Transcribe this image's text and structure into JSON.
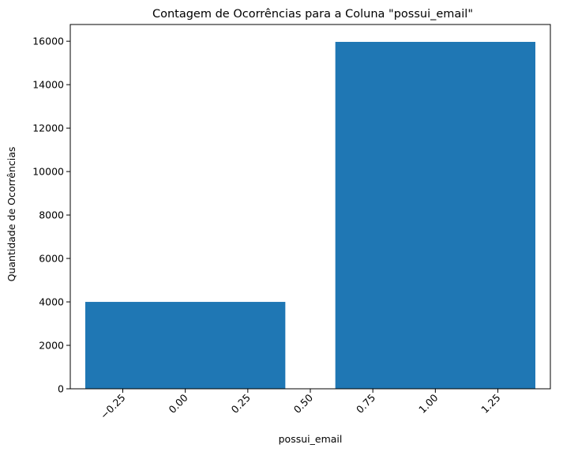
{
  "chart_data": {
    "type": "bar",
    "title": "Contagem de Ocorrências para a Coluna \"possui_email\"",
    "xlabel": "possui_email",
    "ylabel": "Quantidade de Ocorrências",
    "bars": [
      {
        "x": 0,
        "width": 0.8,
        "value": 4000
      },
      {
        "x": 1,
        "width": 0.8,
        "value": 15970
      }
    ],
    "xlim": [
      -0.46,
      1.46
    ],
    "ylim": [
      0,
      16770
    ],
    "xticks": [
      -0.25,
      0.0,
      0.25,
      0.5,
      0.75,
      1.0,
      1.25
    ],
    "xtick_labels": [
      "−0.25",
      "0.00",
      "0.25",
      "0.50",
      "0.75",
      "1.00",
      "1.25"
    ],
    "xtick_rotation": 45,
    "yticks": [
      0,
      2000,
      4000,
      6000,
      8000,
      10000,
      12000,
      14000,
      16000
    ],
    "ytick_labels": [
      "0",
      "2000",
      "4000",
      "6000",
      "8000",
      "10000",
      "12000",
      "14000",
      "16000"
    ],
    "bar_color": "#1f77b4",
    "grid": false,
    "legend": false
  }
}
